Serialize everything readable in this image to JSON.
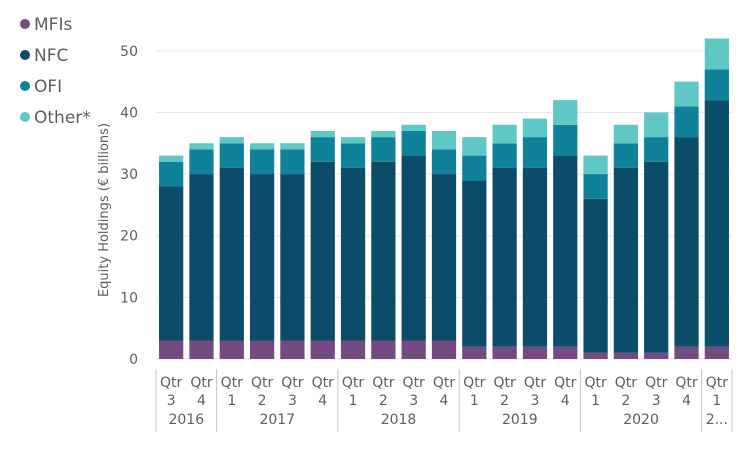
{
  "chart_data": {
    "type": "bar",
    "stacked": true,
    "ylabel": "Equity Holdings (€ billions)",
    "ylim": [
      0,
      55
    ],
    "yticks": [
      0,
      10,
      20,
      30,
      40,
      50
    ],
    "grid": true,
    "legend_position": "top-left",
    "x_level1": [
      "Qtr",
      "Qtr",
      "Qtr",
      "Qtr",
      "Qtr",
      "Qtr",
      "Qtr",
      "Qtr",
      "Qtr",
      "Qtr",
      "Qtr",
      "Qtr",
      "Qtr",
      "Qtr",
      "Qtr",
      "Qtr",
      "Qtr",
      "Qtr",
      "Qtr"
    ],
    "categories": [
      "3",
      "4",
      "1",
      "2",
      "3",
      "4",
      "1",
      "2",
      "3",
      "4",
      "1",
      "2",
      "3",
      "4",
      "1",
      "2",
      "3",
      "4",
      "1"
    ],
    "year_groups": [
      {
        "label": "2016",
        "count": 2
      },
      {
        "label": "2017",
        "count": 4
      },
      {
        "label": "2018",
        "count": 4
      },
      {
        "label": "2019",
        "count": 4
      },
      {
        "label": "2020",
        "count": 4
      },
      {
        "label": "2...",
        "count": 1
      }
    ],
    "series": [
      {
        "name": "MFIs",
        "color": "#744a83",
        "values": [
          3,
          3,
          3,
          3,
          3,
          3,
          3,
          3,
          3,
          3,
          2,
          2,
          2,
          2,
          1,
          1,
          1,
          2,
          2
        ]
      },
      {
        "name": "NFC",
        "color": "#0b4d68",
        "values": [
          25,
          27,
          28,
          27,
          27,
          29,
          28,
          29,
          30,
          27,
          27,
          29,
          29,
          31,
          25,
          30,
          31,
          34,
          40
        ]
      },
      {
        "name": "OFI",
        "color": "#0f8199",
        "values": [
          4,
          4,
          4,
          4,
          4,
          4,
          4,
          4,
          4,
          4,
          4,
          4,
          5,
          5,
          4,
          4,
          4,
          5,
          5
        ]
      },
      {
        "name": "Other*",
        "color": "#5fc7c4",
        "values": [
          1,
          1,
          1,
          1,
          1,
          1,
          1,
          1,
          1,
          3,
          3,
          3,
          3,
          4,
          3,
          3,
          4,
          4,
          5
        ]
      }
    ]
  }
}
